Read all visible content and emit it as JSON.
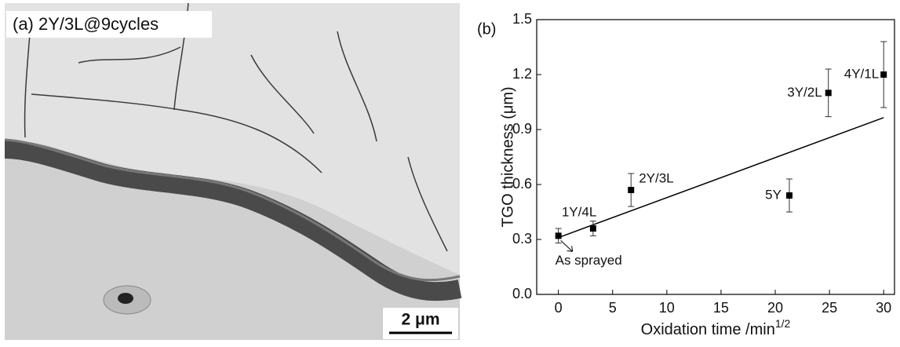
{
  "micrograph": {
    "label": "(a) 2Y/3L@9cycles",
    "scale_bar": "2 μm"
  },
  "chart_data": {
    "type": "scatter",
    "panel_label": "(b)",
    "x_label": {
      "text": "Oxidation time /min",
      "superscript": "1/2"
    },
    "y_label": "TGO thickness (μm)",
    "x": [
      0,
      3.2,
      6.7,
      21.3,
      24.9,
      30
    ],
    "values": [
      0.32,
      0.36,
      0.57,
      0.54,
      1.1,
      1.2
    ],
    "errors": [
      0.04,
      0.04,
      0.09,
      0.09,
      0.13,
      0.18
    ],
    "point_labels": [
      "As sprayed",
      "1Y/4L",
      "2Y/3L",
      "5Y",
      "3Y/2L",
      "4Y/1L"
    ],
    "fit_line": {
      "x": [
        0,
        30
      ],
      "values": [
        0.31,
        0.965
      ]
    },
    "xlim": [
      -2,
      31
    ],
    "ylim": [
      0,
      1.5
    ],
    "xticks": [
      0,
      5,
      10,
      15,
      20,
      25,
      30
    ],
    "yticks": [
      {
        "value": 0,
        "label": "0.0"
      },
      0.3,
      0.6,
      0.9,
      1.2,
      1.5
    ],
    "color": "#000000"
  }
}
